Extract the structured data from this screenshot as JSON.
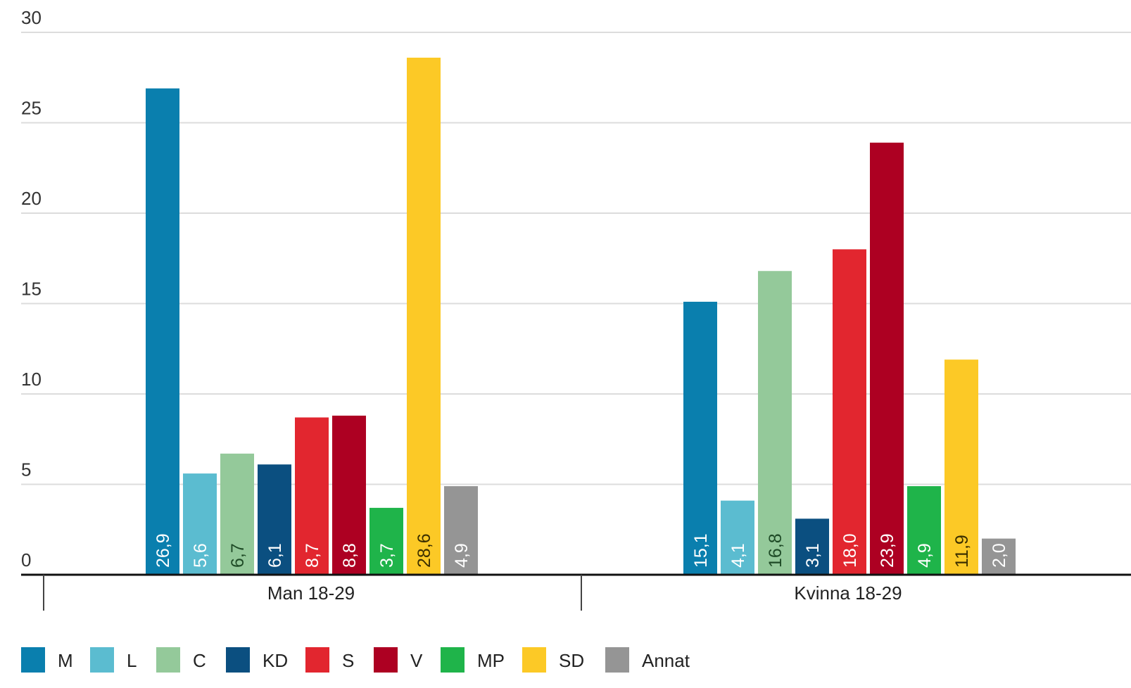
{
  "chart_data": {
    "type": "bar",
    "title": "",
    "xlabel": "",
    "ylabel": "",
    "ylim": [
      0,
      30
    ],
    "yticks": [
      0,
      5,
      10,
      15,
      20,
      25,
      30
    ],
    "grid": true,
    "legend_position": "bottom-left",
    "categories": [
      "Man 18-29",
      "Kvinna 18-29"
    ],
    "series": [
      {
        "name": "M",
        "color": "#0a7fae",
        "label_color": "#ffffff",
        "values": [
          26.9,
          15.1
        ],
        "value_labels": [
          "26,9",
          "15,1"
        ]
      },
      {
        "name": "L",
        "color": "#5bbcd0",
        "label_color": "#ffffff",
        "values": [
          5.6,
          4.1
        ],
        "value_labels": [
          "5,6",
          "4,1"
        ]
      },
      {
        "name": "C",
        "color": "#94c99a",
        "label_color": "#1e4a26",
        "values": [
          6.7,
          16.8
        ],
        "value_labels": [
          "6,7",
          "16,8"
        ]
      },
      {
        "name": "KD",
        "color": "#0b4f80",
        "label_color": "#ffffff",
        "values": [
          6.1,
          3.1
        ],
        "value_labels": [
          "6,1",
          "3,1"
        ]
      },
      {
        "name": "S",
        "color": "#e2262f",
        "label_color": "#ffffff",
        "values": [
          8.7,
          18.0
        ],
        "value_labels": [
          "8,7",
          "18,0"
        ]
      },
      {
        "name": "V",
        "color": "#ad0022",
        "label_color": "#ffffff",
        "values": [
          8.8,
          23.9
        ],
        "value_labels": [
          "8,8",
          "23,9"
        ]
      },
      {
        "name": "MP",
        "color": "#1fb44a",
        "label_color": "#ffffff",
        "values": [
          3.7,
          4.9
        ],
        "value_labels": [
          "3,7",
          "4,9"
        ]
      },
      {
        "name": "SD",
        "color": "#fcc926",
        "label_color": "#3b2f00",
        "values": [
          28.6,
          11.9
        ],
        "value_labels": [
          "28,6",
          "11,9"
        ]
      },
      {
        "name": "Annat",
        "color": "#959595",
        "label_color": "#ffffff",
        "values": [
          4.9,
          2.0
        ],
        "value_labels": [
          "4,9",
          "2,0"
        ]
      }
    ]
  }
}
